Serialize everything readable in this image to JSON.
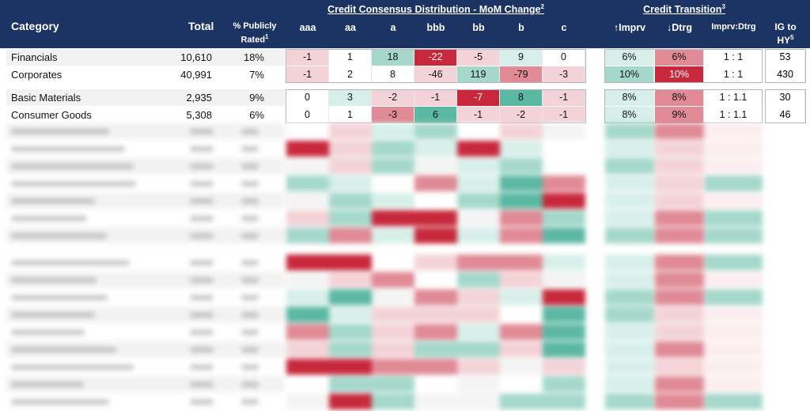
{
  "chart_data": {
    "type": "table",
    "title": "",
    "header": {
      "category": "Category",
      "total": "Total",
      "rated": "% Publicly Rated",
      "rated_sup": "1",
      "dist_group": "Credit Consensus Distribution - MoM Change",
      "dist_sup": "2",
      "dist_cols": [
        "aaa",
        "aa",
        "a",
        "bbb",
        "bb",
        "b",
        "c"
      ],
      "trans_group": "Credit Transition",
      "trans_sup": "3",
      "trans_cols": [
        "↑Imprv",
        "↓Dtrg",
        "Imprv:Dtrg"
      ],
      "ig_to_hy": "IG to HY",
      "ig_sup": "5"
    },
    "rows": [
      {
        "category": "Financials",
        "total": "10,610",
        "rated": "18%",
        "dist": [
          "-1",
          "1",
          "18",
          "-22",
          "-5",
          "9",
          "0"
        ],
        "imprv": "6%",
        "dtrg": "6%",
        "ratio": "1 : 1",
        "ig_to_hy": "53"
      },
      {
        "category": "Corporates",
        "total": "40,991",
        "rated": "7%",
        "dist": [
          "-1",
          "2",
          "8",
          "-46",
          "119",
          "-79",
          "-3"
        ],
        "imprv": "10%",
        "dtrg": "10%",
        "ratio": "1 : 1",
        "ig_to_hy": "430"
      },
      {
        "category": "Basic Materials",
        "total": "2,935",
        "rated": "9%",
        "dist": [
          "0",
          "3",
          "-2",
          "-1",
          "-7",
          "8",
          "-1"
        ],
        "imprv": "8%",
        "dtrg": "8%",
        "ratio": "1 : 1.1",
        "ig_to_hy": "30"
      },
      {
        "category": "Consumer Goods",
        "total": "5,308",
        "rated": "6%",
        "dist": [
          "0",
          "1",
          "-3",
          "6",
          "-1",
          "-2",
          "-1"
        ],
        "imprv": "8%",
        "dtrg": "9%",
        "ratio": "1 : 1.1",
        "ig_to_hy": "46"
      }
    ],
    "colors": {
      "header_bg": "#1c3464",
      "red_strong": "#c8283c",
      "red_mid": "#e08a95",
      "red_light": "#f3d3d8",
      "green_strong": "#5bb8a2",
      "green_mid": "#a5d8cb",
      "green_light": "#d8efe9",
      "neutral": "#ffffff"
    },
    "cell_colors": [
      [
        "red_light",
        "neutral",
        "green_mid",
        "red_strong",
        "red_light",
        "green_light",
        "neutral"
      ],
      [
        "red_light",
        "neutral",
        "neutral",
        "red_light",
        "green_mid",
        "red_mid",
        "red_light"
      ],
      [
        "neutral",
        "green_light",
        "red_light",
        "red_light",
        "red_strong",
        "green_strong",
        "red_light"
      ],
      [
        "neutral",
        "neutral",
        "red_mid",
        "green_strong",
        "red_light",
        "red_light",
        "red_light"
      ]
    ],
    "trans_colors": [
      [
        "green_light",
        "red_mid"
      ],
      [
        "green_mid",
        "red_strong"
      ],
      [
        "green_light",
        "red_mid"
      ],
      [
        "green_light",
        "red_mid"
      ]
    ]
  }
}
